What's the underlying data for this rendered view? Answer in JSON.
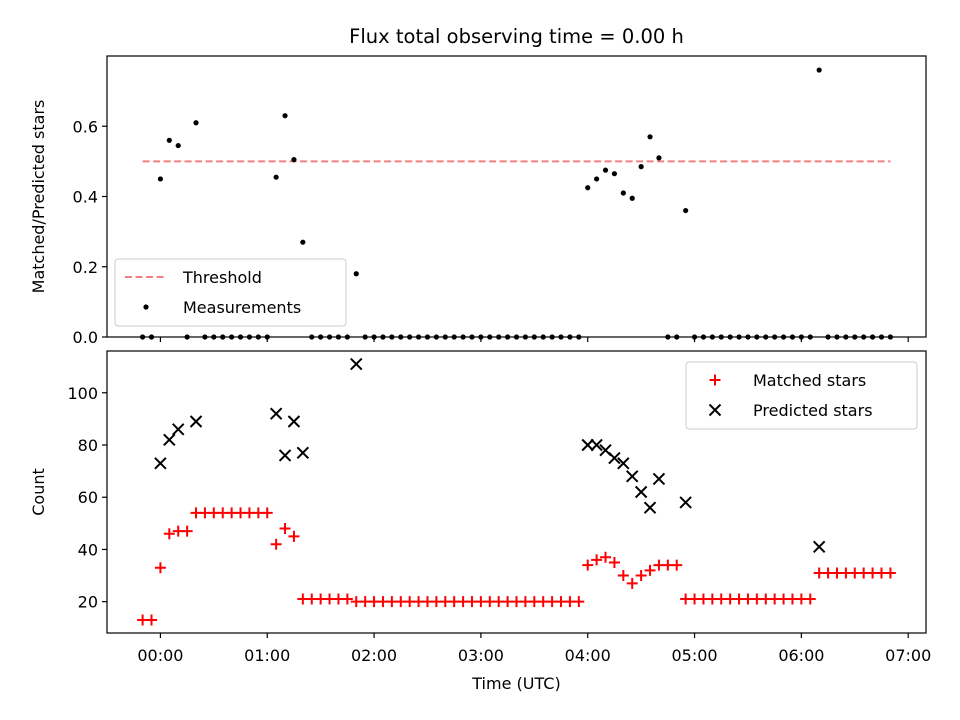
{
  "chart_data": [
    {
      "type": "scatter",
      "title": "Flux total observing time = 0.00 h",
      "xlabel": "",
      "ylabel": "Matched/Predicted stars",
      "xlim": [
        "-00:30",
        "07:10"
      ],
      "ylim": [
        0,
        0.8
      ],
      "yticks": [
        "0.0",
        "0.2",
        "0.4",
        "0.6"
      ],
      "legend_position": "lower-left",
      "threshold": {
        "name": "Threshold",
        "value": 0.5,
        "x_range": [
          "-00:10",
          "06:50"
        ],
        "color": "#f08080",
        "style": "dashed"
      },
      "series": [
        {
          "name": "Measurements",
          "marker": "dot",
          "color": "#000000",
          "points": [
            [
              "-00:10",
              0.0
            ],
            [
              "-00:05",
              0.0
            ],
            [
              "00:00",
              0.45
            ],
            [
              "00:05",
              0.56
            ],
            [
              "00:10",
              0.545
            ],
            [
              "00:15",
              0.0
            ],
            [
              "00:20",
              0.61
            ],
            [
              "00:25",
              0.0
            ],
            [
              "00:30",
              0.0
            ],
            [
              "00:35",
              0.0
            ],
            [
              "00:40",
              0.0
            ],
            [
              "00:45",
              0.0
            ],
            [
              "00:50",
              0.0
            ],
            [
              "00:55",
              0.0
            ],
            [
              "01:00",
              0.0
            ],
            [
              "01:05",
              0.455
            ],
            [
              "01:10",
              0.63
            ],
            [
              "01:15",
              0.505
            ],
            [
              "01:20",
              0.27
            ],
            [
              "01:25",
              0.0
            ],
            [
              "01:30",
              0.0
            ],
            [
              "01:35",
              0.0
            ],
            [
              "01:40",
              0.0
            ],
            [
              "01:45",
              0.0
            ],
            [
              "01:50",
              0.18
            ],
            [
              "01:55",
              0.0
            ],
            [
              "02:00",
              0.0
            ],
            [
              "02:05",
              0.0
            ],
            [
              "02:10",
              0.0
            ],
            [
              "02:15",
              0.0
            ],
            [
              "02:20",
              0.0
            ],
            [
              "02:25",
              0.0
            ],
            [
              "02:30",
              0.0
            ],
            [
              "02:35",
              0.0
            ],
            [
              "02:40",
              0.0
            ],
            [
              "02:45",
              0.0
            ],
            [
              "02:50",
              0.0
            ],
            [
              "02:55",
              0.0
            ],
            [
              "03:00",
              0.0
            ],
            [
              "03:05",
              0.0
            ],
            [
              "03:10",
              0.0
            ],
            [
              "03:15",
              0.0
            ],
            [
              "03:20",
              0.0
            ],
            [
              "03:25",
              0.0
            ],
            [
              "03:30",
              0.0
            ],
            [
              "03:35",
              0.0
            ],
            [
              "03:40",
              0.0
            ],
            [
              "03:45",
              0.0
            ],
            [
              "03:50",
              0.0
            ],
            [
              "03:55",
              0.0
            ],
            [
              "04:00",
              0.425
            ],
            [
              "04:05",
              0.45
            ],
            [
              "04:10",
              0.475
            ],
            [
              "04:15",
              0.465
            ],
            [
              "04:20",
              0.41
            ],
            [
              "04:25",
              0.395
            ],
            [
              "04:30",
              0.485
            ],
            [
              "04:35",
              0.57
            ],
            [
              "04:40",
              0.51
            ],
            [
              "04:45",
              0.0
            ],
            [
              "04:50",
              0.0
            ],
            [
              "04:55",
              0.36
            ],
            [
              "05:00",
              0.0
            ],
            [
              "05:05",
              0.0
            ],
            [
              "05:10",
              0.0
            ],
            [
              "05:15",
              0.0
            ],
            [
              "05:20",
              0.0
            ],
            [
              "05:25",
              0.0
            ],
            [
              "05:30",
              0.0
            ],
            [
              "05:35",
              0.0
            ],
            [
              "05:40",
              0.0
            ],
            [
              "05:45",
              0.0
            ],
            [
              "05:50",
              0.0
            ],
            [
              "05:55",
              0.0
            ],
            [
              "06:00",
              0.0
            ],
            [
              "06:05",
              0.0
            ],
            [
              "06:10",
              0.76
            ],
            [
              "06:15",
              0.0
            ],
            [
              "06:20",
              0.0
            ],
            [
              "06:25",
              0.0
            ],
            [
              "06:30",
              0.0
            ],
            [
              "06:35",
              0.0
            ],
            [
              "06:40",
              0.0
            ],
            [
              "06:45",
              0.0
            ],
            [
              "06:50",
              0.0
            ]
          ]
        }
      ]
    },
    {
      "type": "scatter",
      "title": "",
      "xlabel": "Time (UTC)",
      "ylabel": "Count",
      "xlim": [
        "-00:30",
        "07:10"
      ],
      "ylim": [
        8,
        116
      ],
      "xticks": [
        "00:00",
        "01:00",
        "02:00",
        "03:00",
        "04:00",
        "05:00",
        "06:00",
        "07:00"
      ],
      "yticks": [
        "20",
        "40",
        "60",
        "80",
        "100"
      ],
      "legend_position": "upper-right",
      "series": [
        {
          "name": "Matched stars",
          "marker": "plus",
          "color": "#ff0000",
          "points": [
            [
              "-00:10",
              13
            ],
            [
              "-00:05",
              13
            ],
            [
              "00:00",
              33
            ],
            [
              "00:05",
              46
            ],
            [
              "00:10",
              47
            ],
            [
              "00:15",
              47
            ],
            [
              "00:20",
              54
            ],
            [
              "00:25",
              54
            ],
            [
              "00:30",
              54
            ],
            [
              "00:35",
              54
            ],
            [
              "00:40",
              54
            ],
            [
              "00:45",
              54
            ],
            [
              "00:50",
              54
            ],
            [
              "00:55",
              54
            ],
            [
              "01:00",
              54
            ],
            [
              "01:05",
              42
            ],
            [
              "01:10",
              48
            ],
            [
              "01:15",
              45
            ],
            [
              "01:20",
              21
            ],
            [
              "01:25",
              21
            ],
            [
              "01:30",
              21
            ],
            [
              "01:35",
              21
            ],
            [
              "01:40",
              21
            ],
            [
              "01:45",
              21
            ],
            [
              "01:50",
              20
            ],
            [
              "01:55",
              20
            ],
            [
              "02:00",
              20
            ],
            [
              "02:05",
              20
            ],
            [
              "02:10",
              20
            ],
            [
              "02:15",
              20
            ],
            [
              "02:20",
              20
            ],
            [
              "02:25",
              20
            ],
            [
              "02:30",
              20
            ],
            [
              "02:35",
              20
            ],
            [
              "02:40",
              20
            ],
            [
              "02:45",
              20
            ],
            [
              "02:50",
              20
            ],
            [
              "02:55",
              20
            ],
            [
              "03:00",
              20
            ],
            [
              "03:05",
              20
            ],
            [
              "03:10",
              20
            ],
            [
              "03:15",
              20
            ],
            [
              "03:20",
              20
            ],
            [
              "03:25",
              20
            ],
            [
              "03:30",
              20
            ],
            [
              "03:35",
              20
            ],
            [
              "03:40",
              20
            ],
            [
              "03:45",
              20
            ],
            [
              "03:50",
              20
            ],
            [
              "03:55",
              20
            ],
            [
              "04:00",
              34
            ],
            [
              "04:05",
              36
            ],
            [
              "04:10",
              37
            ],
            [
              "04:15",
              35
            ],
            [
              "04:20",
              30
            ],
            [
              "04:25",
              27
            ],
            [
              "04:30",
              30
            ],
            [
              "04:35",
              32
            ],
            [
              "04:40",
              34
            ],
            [
              "04:45",
              34
            ],
            [
              "04:50",
              34
            ],
            [
              "04:55",
              21
            ],
            [
              "05:00",
              21
            ],
            [
              "05:05",
              21
            ],
            [
              "05:10",
              21
            ],
            [
              "05:15",
              21
            ],
            [
              "05:20",
              21
            ],
            [
              "05:25",
              21
            ],
            [
              "05:30",
              21
            ],
            [
              "05:35",
              21
            ],
            [
              "05:40",
              21
            ],
            [
              "05:45",
              21
            ],
            [
              "05:50",
              21
            ],
            [
              "05:55",
              21
            ],
            [
              "06:00",
              21
            ],
            [
              "06:05",
              21
            ],
            [
              "06:10",
              31
            ],
            [
              "06:15",
              31
            ],
            [
              "06:20",
              31
            ],
            [
              "06:25",
              31
            ],
            [
              "06:30",
              31
            ],
            [
              "06:35",
              31
            ],
            [
              "06:40",
              31
            ],
            [
              "06:45",
              31
            ],
            [
              "06:50",
              31
            ]
          ]
        },
        {
          "name": "Predicted stars",
          "marker": "x",
          "color": "#000000",
          "points": [
            [
              "00:00",
              73
            ],
            [
              "00:05",
              82
            ],
            [
              "00:10",
              86
            ],
            [
              "00:20",
              89
            ],
            [
              "01:05",
              92
            ],
            [
              "01:10",
              76
            ],
            [
              "01:15",
              89
            ],
            [
              "01:20",
              77
            ],
            [
              "01:50",
              111
            ],
            [
              "04:00",
              80
            ],
            [
              "04:05",
              80
            ],
            [
              "04:10",
              78
            ],
            [
              "04:15",
              75
            ],
            [
              "04:20",
              73
            ],
            [
              "04:25",
              68
            ],
            [
              "04:30",
              62
            ],
            [
              "04:35",
              56
            ],
            [
              "04:40",
              67
            ],
            [
              "04:55",
              58
            ],
            [
              "06:10",
              41
            ]
          ]
        }
      ]
    }
  ]
}
